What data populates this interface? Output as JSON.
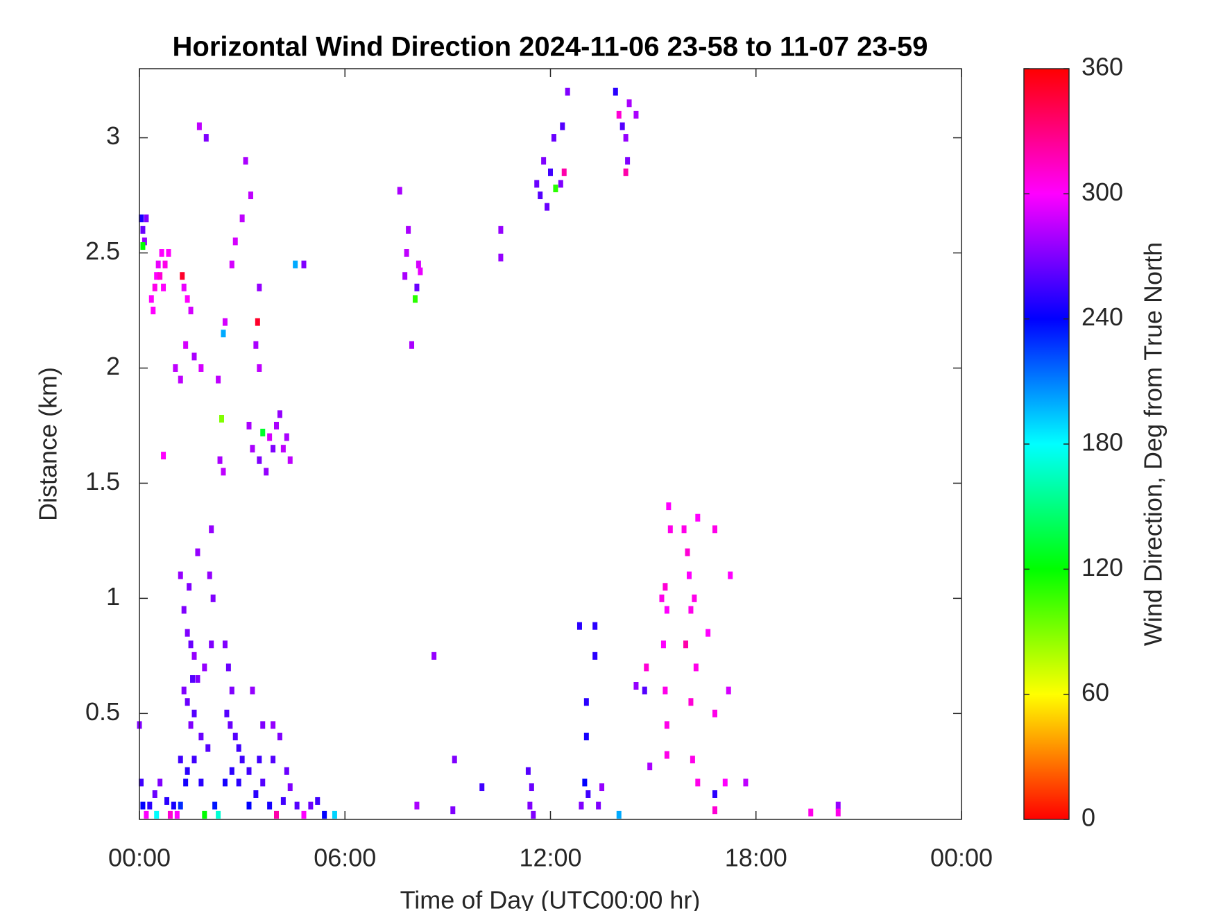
{
  "chart_data": {
    "type": "heatmap",
    "title": "Horizontal Wind Direction 2024-11-06 23-58 to 11-07 23-59",
    "x_label": "Time of Day (UTC00:00 hr)",
    "y_label": "Distance (km)",
    "colorbar_label": "Wind Direction, Deg from True North",
    "colormap": "hsv",
    "xlim": [
      0,
      24
    ],
    "xticks": [
      {
        "value": 0,
        "label": "00:00"
      },
      {
        "value": 6,
        "label": "06:00"
      },
      {
        "value": 12,
        "label": "12:00"
      },
      {
        "value": 18,
        "label": "18:00"
      },
      {
        "value": 24,
        "label": "00:00"
      }
    ],
    "ylim": [
      0.04,
      3.3
    ],
    "yticks": [
      0.5,
      1,
      1.5,
      2,
      2.5,
      3
    ],
    "clim": [
      0,
      360
    ],
    "cticks": [
      0,
      60,
      120,
      180,
      240,
      300,
      360
    ],
    "x": [
      0.05,
      0.1,
      0.15,
      0.2,
      0.1,
      0.35,
      0.45,
      0.5,
      0.55,
      0.65,
      0.75,
      0.85,
      0.4,
      0.6,
      0.7,
      1.3,
      1.4,
      1.5,
      1.25,
      1.05,
      1.2,
      1.35,
      1.6,
      1.8,
      2.3,
      2.5,
      2.45,
      0.7,
      2.45,
      2.35,
      2.4,
      2.7,
      2.8,
      3.0,
      3.1,
      3.25,
      3.5,
      3.4,
      3.5,
      3.45,
      1.75,
      1.95,
      4.8,
      4.55,
      7.6,
      3.2,
      3.3,
      3.5,
      3.7,
      3.8,
      4.0,
      4.1,
      4.3,
      4.4,
      3.9,
      3.6,
      4.2,
      1.2,
      1.3,
      1.4,
      1.5,
      1.6,
      1.3,
      1.4,
      1.5,
      1.6,
      1.7,
      1.8,
      1.9,
      2.0,
      2.1,
      2.05,
      2.1,
      2.15,
      1.2,
      1.4,
      1.6,
      1.8,
      1.35,
      1.7,
      1.45,
      1.55,
      2.5,
      2.6,
      2.7,
      2.55,
      2.65,
      2.8,
      2.9,
      3.0,
      2.7,
      2.5,
      2.9,
      3.2,
      3.3,
      3.6,
      3.9,
      4.1,
      0.0,
      0.05,
      0.1,
      0.2,
      0.3,
      0.45,
      0.6,
      0.8,
      0.9,
      0.5,
      1.0,
      1.1,
      1.2,
      1.9,
      2.2,
      2.3,
      3.2,
      3.4,
      3.6,
      3.8,
      4.0,
      4.2,
      4.4,
      4.6,
      4.8,
      5.0,
      5.2,
      5.4,
      5.7,
      3.5,
      3.9,
      4.3,
      7.75,
      7.8,
      7.85,
      8.15,
      8.1,
      8.05,
      8.2,
      7.95,
      8.6,
      8.1,
      9.2,
      9.15,
      10.0,
      10.55,
      10.55,
      11.6,
      11.7,
      11.8,
      11.9,
      12.0,
      12.1,
      12.15,
      12.3,
      12.4,
      12.35,
      12.5,
      13.9,
      14.0,
      14.1,
      14.2,
      14.25,
      14.3,
      14.2,
      14.5,
      15.25,
      15.35,
      15.4,
      15.45,
      15.5,
      15.3,
      15.35,
      15.4,
      15.4,
      15.9,
      16.0,
      16.05,
      16.1,
      15.95,
      16.2,
      16.3,
      16.25,
      16.1,
      16.15,
      16.3,
      16.8,
      16.8,
      16.8,
      16.8,
      16.6,
      17.25,
      17.2,
      17.1,
      14.8,
      14.5,
      14.75,
      14.9,
      11.35,
      11.45,
      11.4,
      11.5,
      12.9,
      13.0,
      13.1,
      13.4,
      13.5,
      13.05,
      13.05,
      13.3,
      12.85,
      13.3,
      14.0,
      19.6,
      20.4,
      20.4,
      17.7
    ],
    "y": [
      2.65,
      2.6,
      2.55,
      2.65,
      2.53,
      2.3,
      2.35,
      2.4,
      2.45,
      2.5,
      2.45,
      2.5,
      2.25,
      2.4,
      2.35,
      2.35,
      2.3,
      2.25,
      2.4,
      2.0,
      1.95,
      2.1,
      2.05,
      2.0,
      1.95,
      2.2,
      2.15,
      1.62,
      1.55,
      1.6,
      1.78,
      2.45,
      2.55,
      2.65,
      2.9,
      2.75,
      2.35,
      2.1,
      2.0,
      2.2,
      3.05,
      3.0,
      2.45,
      2.45,
      2.77,
      1.75,
      1.65,
      1.6,
      1.55,
      1.7,
      1.75,
      1.8,
      1.7,
      1.6,
      1.65,
      1.72,
      1.65,
      1.1,
      0.95,
      0.85,
      0.8,
      0.75,
      0.6,
      0.55,
      0.45,
      0.5,
      0.65,
      0.4,
      0.7,
      0.35,
      0.8,
      1.1,
      1.3,
      1.0,
      0.3,
      0.25,
      0.3,
      0.2,
      0.2,
      1.2,
      1.05,
      0.65,
      0.8,
      0.7,
      0.6,
      0.5,
      0.45,
      0.4,
      0.35,
      0.3,
      0.25,
      0.2,
      0.2,
      0.25,
      0.6,
      0.45,
      0.45,
      0.4,
      0.45,
      0.2,
      0.1,
      0.06,
      0.1,
      0.15,
      0.2,
      0.12,
      0.06,
      0.06,
      0.1,
      0.06,
      0.1,
      0.06,
      0.1,
      0.06,
      0.1,
      0.15,
      0.2,
      0.1,
      0.06,
      0.12,
      0.18,
      0.1,
      0.06,
      0.1,
      0.12,
      0.06,
      0.06,
      0.3,
      0.3,
      0.25,
      2.4,
      2.5,
      2.6,
      2.45,
      2.35,
      2.3,
      2.42,
      2.1,
      0.75,
      0.1,
      0.3,
      0.08,
      0.18,
      2.48,
      2.6,
      2.8,
      2.75,
      2.9,
      2.7,
      2.85,
      3.0,
      2.78,
      2.8,
      2.85,
      3.05,
      3.2,
      3.2,
      3.1,
      3.05,
      3.0,
      2.9,
      3.15,
      2.85,
      3.1,
      1.0,
      1.05,
      0.95,
      1.4,
      1.3,
      0.8,
      0.6,
      0.45,
      0.32,
      1.3,
      1.2,
      1.1,
      0.95,
      0.8,
      1.0,
      1.35,
      0.7,
      0.55,
      0.3,
      0.2,
      0.5,
      0.15,
      0.08,
      1.3,
      0.85,
      1.1,
      0.6,
      0.2,
      0.7,
      0.62,
      0.6,
      0.27,
      0.25,
      0.18,
      0.1,
      0.06,
      0.1,
      0.2,
      0.15,
      0.1,
      0.18,
      0.4,
      0.55,
      0.75,
      0.88,
      0.88,
      0.06,
      0.07,
      0.1,
      0.07,
      0.2
    ],
    "values": [
      245,
      265,
      275,
      270,
      120,
      300,
      305,
      300,
      295,
      300,
      305,
      300,
      300,
      310,
      300,
      295,
      300,
      290,
      350,
      285,
      285,
      290,
      280,
      290,
      285,
      290,
      200,
      300,
      285,
      280,
      90,
      290,
      290,
      285,
      280,
      285,
      275,
      280,
      285,
      350,
      285,
      270,
      270,
      200,
      280,
      280,
      280,
      270,
      275,
      290,
      280,
      275,
      280,
      285,
      270,
      130,
      285,
      275,
      270,
      270,
      265,
      275,
      270,
      265,
      270,
      260,
      270,
      265,
      275,
      260,
      270,
      275,
      275,
      270,
      255,
      250,
      255,
      250,
      245,
      275,
      270,
      260,
      270,
      265,
      270,
      260,
      265,
      260,
      255,
      255,
      250,
      245,
      250,
      255,
      275,
      270,
      275,
      270,
      270,
      255,
      240,
      300,
      250,
      265,
      270,
      250,
      310,
      180,
      245,
      300,
      230,
      120,
      235,
      170,
      240,
      250,
      260,
      245,
      320,
      255,
      270,
      260,
      300,
      265,
      255,
      240,
      190,
      255,
      260,
      265,
      280,
      285,
      280,
      290,
      265,
      110,
      295,
      280,
      275,
      280,
      270,
      270,
      255,
      275,
      275,
      265,
      260,
      270,
      265,
      255,
      265,
      110,
      270,
      320,
      260,
      270,
      250,
      310,
      260,
      275,
      270,
      280,
      320,
      280,
      305,
      310,
      300,
      300,
      305,
      300,
      305,
      305,
      305,
      305,
      310,
      300,
      305,
      320,
      305,
      300,
      305,
      310,
      305,
      305,
      305,
      250,
      310,
      305,
      300,
      300,
      290,
      300,
      310,
      275,
      260,
      280,
      260,
      265,
      270,
      270,
      270,
      240,
      255,
      270,
      275,
      245,
      250,
      250,
      250,
      250,
      200,
      305,
      275,
      305,
      285
    ]
  }
}
